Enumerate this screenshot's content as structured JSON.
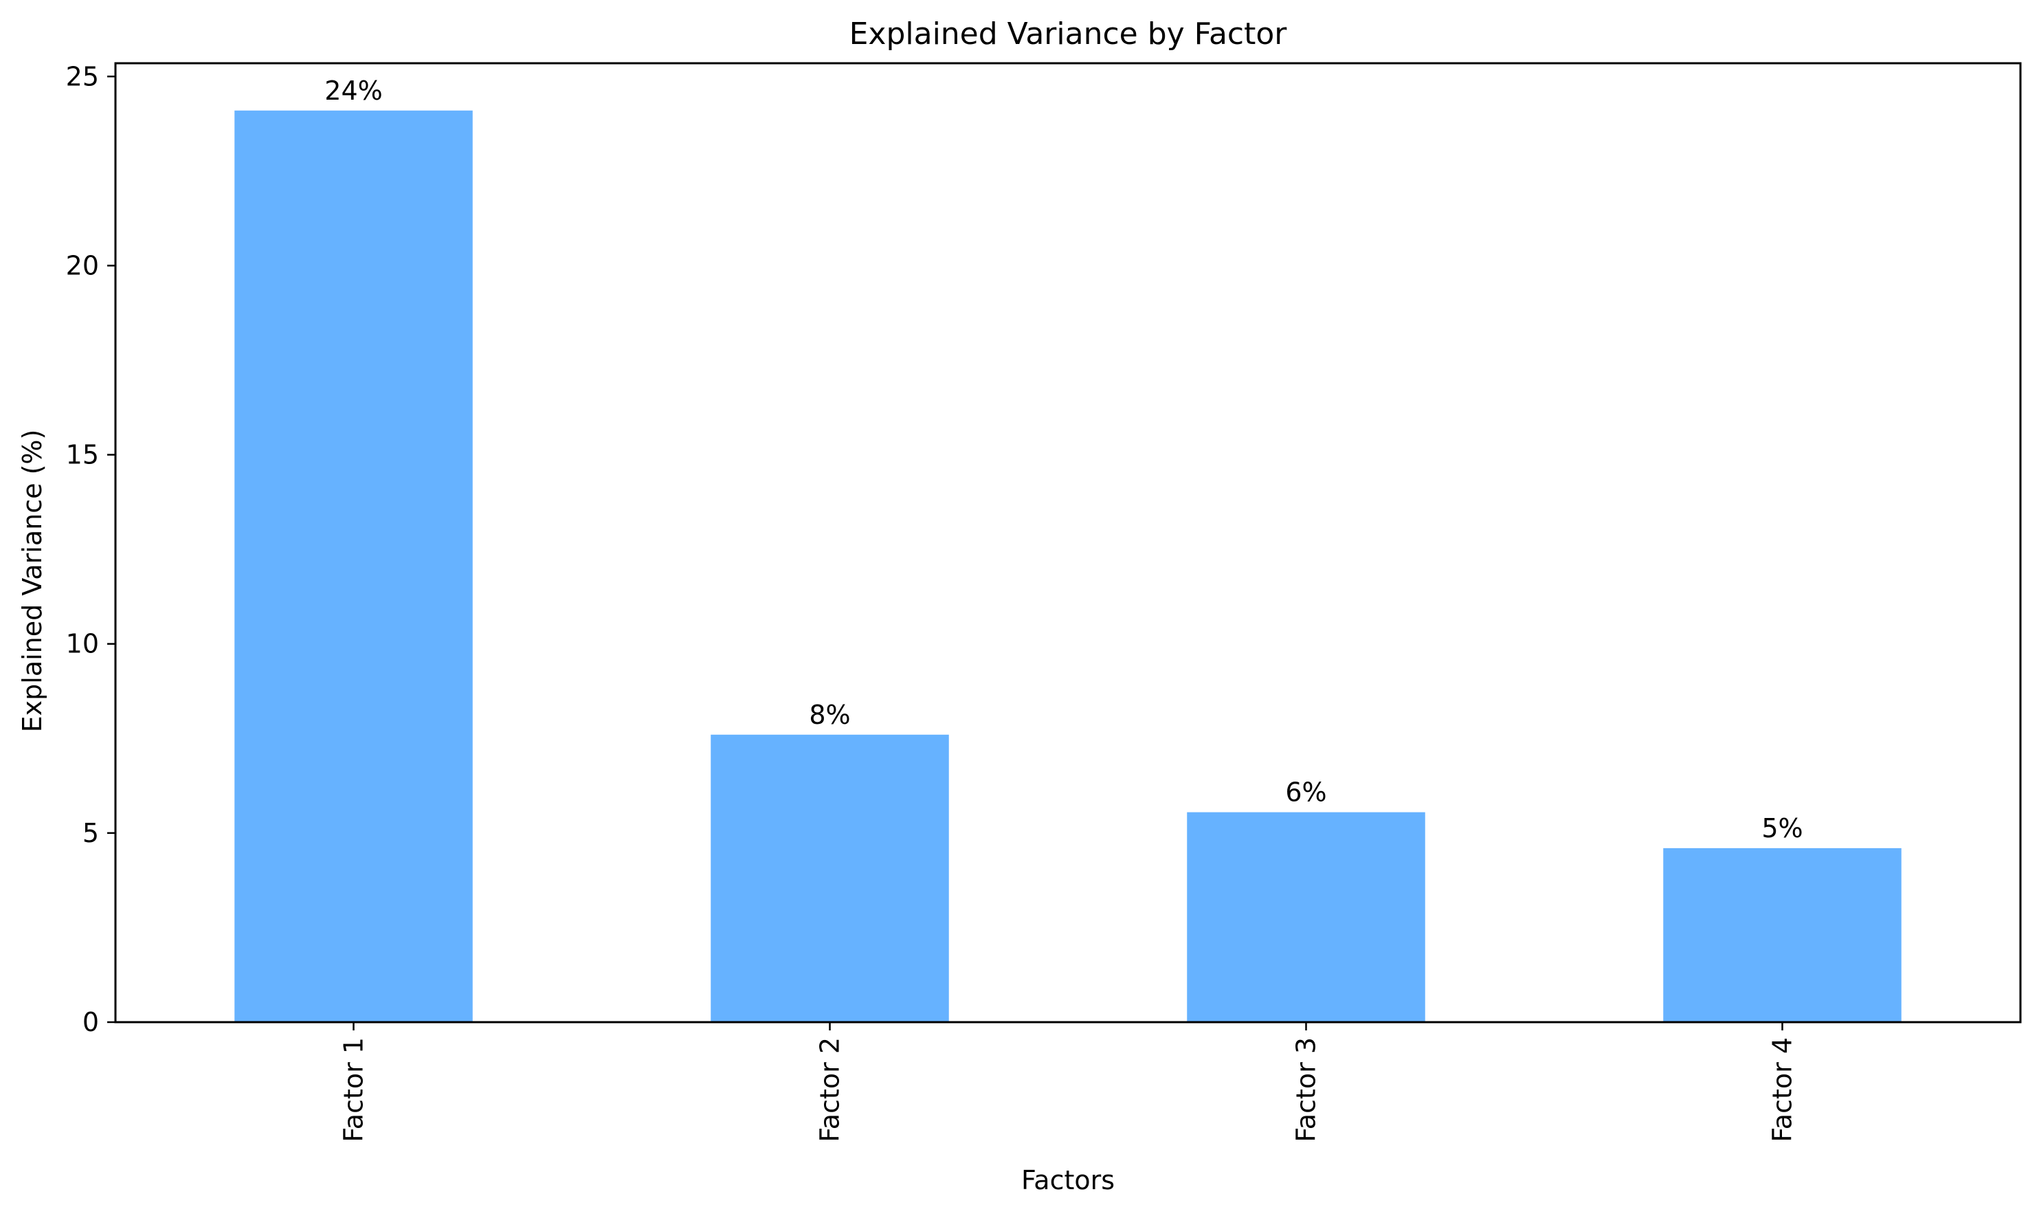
{
  "chart_data": {
    "type": "bar",
    "title": "Explained Variance by Factor",
    "xlabel": "Factors",
    "ylabel": "Explained Variance (%)",
    "categories": [
      "Factor 1",
      "Factor 2",
      "Factor 3",
      "Factor 4"
    ],
    "values": [
      24.1,
      7.6,
      5.55,
      4.6
    ],
    "data_labels": [
      "24%",
      "8%",
      "6%",
      "5%"
    ],
    "ylim": [
      0,
      25.35
    ],
    "yticks": [
      0,
      5,
      10,
      15,
      20,
      25
    ],
    "grid": false,
    "legend": "none",
    "bar_color": "#66b2ff"
  }
}
